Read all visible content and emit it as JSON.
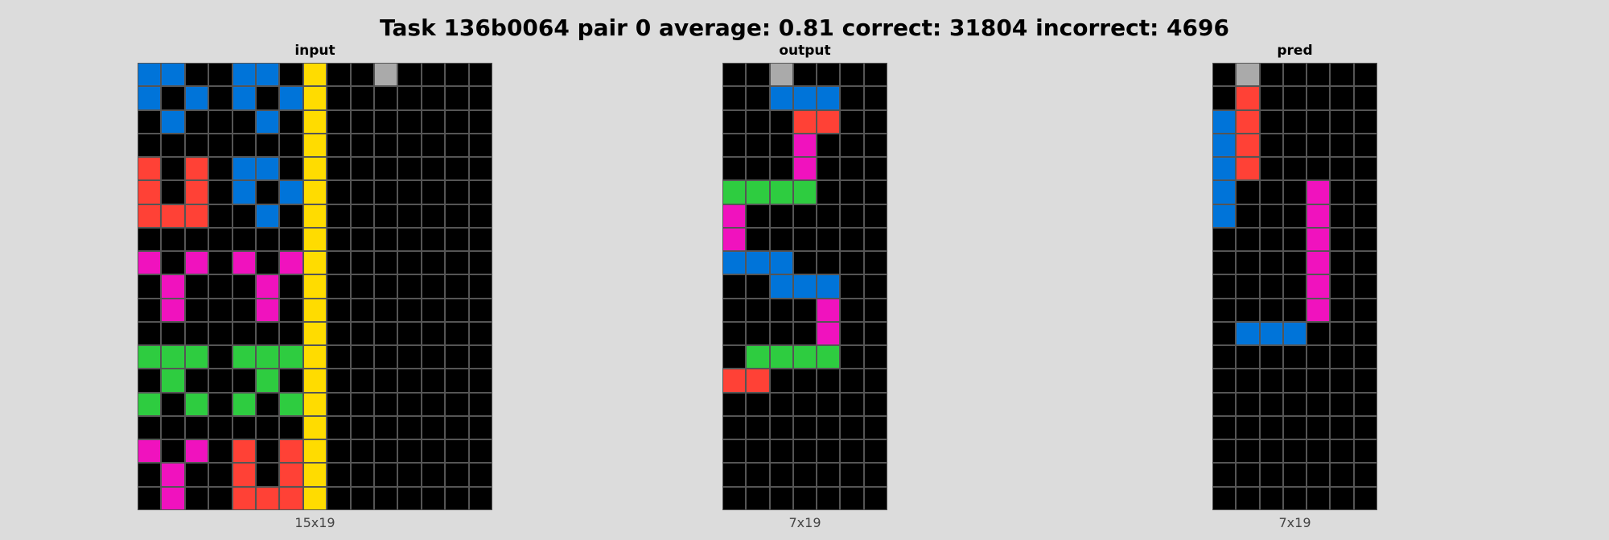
{
  "title": "Task 136b0064 pair 0 average: 0.81 correct: 31804 incorrect: 4696",
  "palette": {
    "0": "#000000",
    "1": "#0074D9",
    "2": "#FF4136",
    "3": "#2ECC40",
    "4": "#FFDC00",
    "5": "#AAAAAA",
    "6": "#F012BE"
  },
  "panels": [
    {
      "label": "input",
      "dims": "15x19",
      "grid": [
        [
          1,
          1,
          0,
          0,
          1,
          1,
          0,
          4,
          0,
          0,
          5,
          0,
          0,
          0,
          0
        ],
        [
          1,
          0,
          1,
          0,
          1,
          0,
          1,
          4,
          0,
          0,
          0,
          0,
          0,
          0,
          0
        ],
        [
          0,
          1,
          0,
          0,
          0,
          1,
          0,
          4,
          0,
          0,
          0,
          0,
          0,
          0,
          0
        ],
        [
          0,
          0,
          0,
          0,
          0,
          0,
          0,
          4,
          0,
          0,
          0,
          0,
          0,
          0,
          0
        ],
        [
          2,
          0,
          2,
          0,
          1,
          1,
          0,
          4,
          0,
          0,
          0,
          0,
          0,
          0,
          0
        ],
        [
          2,
          0,
          2,
          0,
          1,
          0,
          1,
          4,
          0,
          0,
          0,
          0,
          0,
          0,
          0
        ],
        [
          2,
          2,
          2,
          0,
          0,
          1,
          0,
          4,
          0,
          0,
          0,
          0,
          0,
          0,
          0
        ],
        [
          0,
          0,
          0,
          0,
          0,
          0,
          0,
          4,
          0,
          0,
          0,
          0,
          0,
          0,
          0
        ],
        [
          6,
          0,
          6,
          0,
          6,
          0,
          6,
          4,
          0,
          0,
          0,
          0,
          0,
          0,
          0
        ],
        [
          0,
          6,
          0,
          0,
          0,
          6,
          0,
          4,
          0,
          0,
          0,
          0,
          0,
          0,
          0
        ],
        [
          0,
          6,
          0,
          0,
          0,
          6,
          0,
          4,
          0,
          0,
          0,
          0,
          0,
          0,
          0
        ],
        [
          0,
          0,
          0,
          0,
          0,
          0,
          0,
          4,
          0,
          0,
          0,
          0,
          0,
          0,
          0
        ],
        [
          3,
          3,
          3,
          0,
          3,
          3,
          3,
          4,
          0,
          0,
          0,
          0,
          0,
          0,
          0
        ],
        [
          0,
          3,
          0,
          0,
          0,
          3,
          0,
          4,
          0,
          0,
          0,
          0,
          0,
          0,
          0
        ],
        [
          3,
          0,
          3,
          0,
          3,
          0,
          3,
          4,
          0,
          0,
          0,
          0,
          0,
          0,
          0
        ],
        [
          0,
          0,
          0,
          0,
          0,
          0,
          0,
          4,
          0,
          0,
          0,
          0,
          0,
          0,
          0
        ],
        [
          6,
          0,
          6,
          0,
          2,
          0,
          2,
          4,
          0,
          0,
          0,
          0,
          0,
          0,
          0
        ],
        [
          0,
          6,
          0,
          0,
          2,
          0,
          2,
          4,
          0,
          0,
          0,
          0,
          0,
          0,
          0
        ],
        [
          0,
          6,
          0,
          0,
          2,
          2,
          2,
          4,
          0,
          0,
          0,
          0,
          0,
          0,
          0
        ]
      ]
    },
    {
      "label": "output",
      "dims": "7x19",
      "grid": [
        [
          0,
          0,
          5,
          0,
          0,
          0,
          0
        ],
        [
          0,
          0,
          1,
          1,
          1,
          0,
          0
        ],
        [
          0,
          0,
          0,
          2,
          2,
          0,
          0
        ],
        [
          0,
          0,
          0,
          6,
          0,
          0,
          0
        ],
        [
          0,
          0,
          0,
          6,
          0,
          0,
          0
        ],
        [
          3,
          3,
          3,
          3,
          0,
          0,
          0
        ],
        [
          6,
          0,
          0,
          0,
          0,
          0,
          0
        ],
        [
          6,
          0,
          0,
          0,
          0,
          0,
          0
        ],
        [
          1,
          1,
          1,
          0,
          0,
          0,
          0
        ],
        [
          0,
          0,
          1,
          1,
          1,
          0,
          0
        ],
        [
          0,
          0,
          0,
          0,
          6,
          0,
          0
        ],
        [
          0,
          0,
          0,
          0,
          6,
          0,
          0
        ],
        [
          0,
          3,
          3,
          3,
          3,
          0,
          0
        ],
        [
          2,
          2,
          0,
          0,
          0,
          0,
          0
        ],
        [
          0,
          0,
          0,
          0,
          0,
          0,
          0
        ],
        [
          0,
          0,
          0,
          0,
          0,
          0,
          0
        ],
        [
          0,
          0,
          0,
          0,
          0,
          0,
          0
        ],
        [
          0,
          0,
          0,
          0,
          0,
          0,
          0
        ],
        [
          0,
          0,
          0,
          0,
          0,
          0,
          0
        ]
      ]
    },
    {
      "label": "pred",
      "dims": "7x19",
      "grid": [
        [
          0,
          5,
          0,
          0,
          0,
          0,
          0
        ],
        [
          0,
          2,
          0,
          0,
          0,
          0,
          0
        ],
        [
          1,
          2,
          0,
          0,
          0,
          0,
          0
        ],
        [
          1,
          2,
          0,
          0,
          0,
          0,
          0
        ],
        [
          1,
          2,
          0,
          0,
          0,
          0,
          0
        ],
        [
          1,
          0,
          0,
          0,
          6,
          0,
          0
        ],
        [
          1,
          0,
          0,
          0,
          6,
          0,
          0
        ],
        [
          0,
          0,
          0,
          0,
          6,
          0,
          0
        ],
        [
          0,
          0,
          0,
          0,
          6,
          0,
          0
        ],
        [
          0,
          0,
          0,
          0,
          6,
          0,
          0
        ],
        [
          0,
          0,
          0,
          0,
          6,
          0,
          0
        ],
        [
          0,
          1,
          1,
          1,
          0,
          0,
          0
        ],
        [
          0,
          0,
          0,
          0,
          0,
          0,
          0
        ],
        [
          0,
          0,
          0,
          0,
          0,
          0,
          0
        ],
        [
          0,
          0,
          0,
          0,
          0,
          0,
          0
        ],
        [
          0,
          0,
          0,
          0,
          0,
          0,
          0
        ],
        [
          0,
          0,
          0,
          0,
          0,
          0,
          0
        ],
        [
          0,
          0,
          0,
          0,
          0,
          0,
          0
        ],
        [
          0,
          0,
          0,
          0,
          0,
          0,
          0
        ]
      ]
    }
  ]
}
